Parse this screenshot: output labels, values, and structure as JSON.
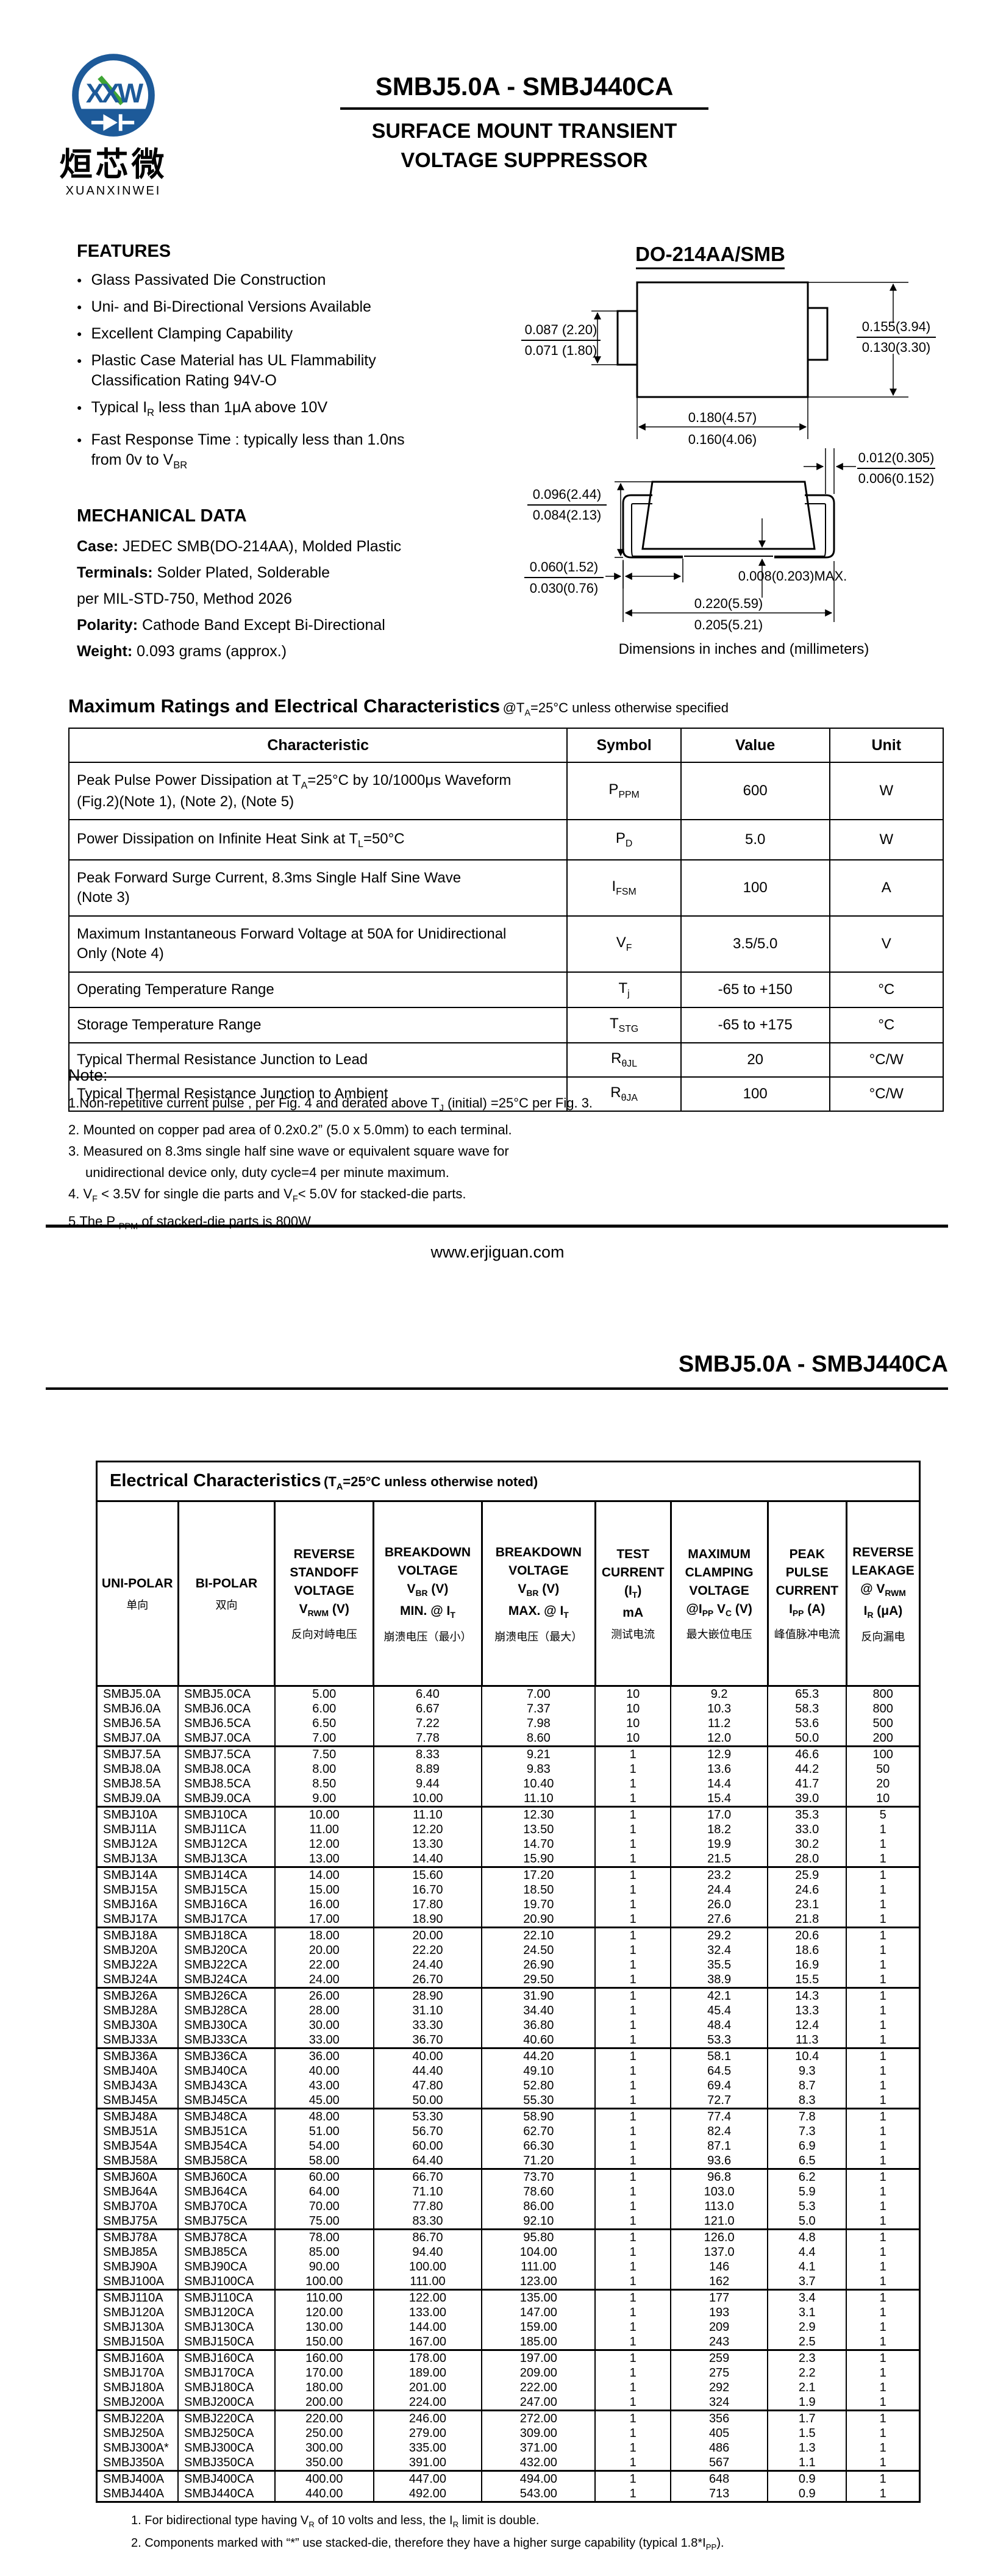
{
  "colors": {
    "logo_blue": "#1d5a99",
    "logo_green": "#3fa535"
  },
  "page1": {
    "logo": {
      "logo_text": "XXW",
      "brand_cn": "烜芯微",
      "brand_en": "XUANXINWEI"
    },
    "title": "SMBJ5.0A - SMBJ440CA",
    "subtitle": [
      "SURFACE MOUNT TRANSIENT",
      "VOLTAGE SUPPRESSOR"
    ],
    "features": {
      "heading": "FEATURES",
      "items": [
        [
          "Glass Passivated Die Construction"
        ],
        [
          "Uni- and Bi-Directional Versions Available"
        ],
        [
          "Excellent Clamping Capability"
        ],
        [
          "Plastic Case Material has UL Flammability",
          "Classification Rating 94V-O"
        ],
        [
          "Typical I_{R} less than 1μA above 10V"
        ],
        [
          "Fast Response Time : typically less than 1.0ns",
          "from 0v to V_{BR}"
        ]
      ]
    },
    "mechanical": {
      "heading": "MECHANICAL DATA",
      "lines": [
        {
          "label": "Case:",
          "text": " JEDEC SMB(DO-214AA), Molded Plastic"
        },
        {
          "label": "Terminals:",
          "text": " Solder Plated, Solderable"
        },
        {
          "label": "",
          "text": "per MIL-STD-750, Method 2026"
        },
        {
          "label": "Polarity:",
          "text": " Cathode Band Except Bi-Directional"
        },
        {
          "label": "Weight:",
          "text": " 0.093 grams (approx.)"
        }
      ]
    },
    "package": {
      "heading": "DO-214AA/SMB",
      "dims": {
        "tab_height": [
          "0.087 (2.20)",
          "0.071 (1.80)"
        ],
        "body_height": [
          "0.155(3.94)",
          "0.130(3.30)"
        ],
        "body_width": [
          "0.180(4.57)",
          "0.160(4.06)"
        ],
        "lead_thickness": [
          "0.012(0.305)",
          "0.006(0.152)"
        ],
        "profile_height": [
          "0.096(2.44)",
          "0.084(2.13)"
        ],
        "lead_length": [
          "0.060(1.52)",
          "0.030(0.76)"
        ],
        "standoff_max": "0.008(0.203)MAX.",
        "overall_width": [
          "0.220(5.59)",
          "0.205(5.21)"
        ]
      },
      "caption": "Dimensions in inches and (millimeters)"
    },
    "ratings": {
      "heading": "Maximum Ratings and Electrical Characteristics",
      "heading_note": "@T_{A}=25°C unless otherwise specified",
      "columns": [
        "Characteristic",
        "Symbol",
        "Value",
        "Unit"
      ],
      "rows": [
        {
          "characteristic": [
            "Peak Pulse Power Dissipation at T_{A}=25°C by 10/1000μs Waveform",
            "(Fig.2)(Note 1), (Note 2), (Note 5)"
          ],
          "symbol": "P_{PPM}",
          "value": "600",
          "unit": "W"
        },
        {
          "characteristic": [
            "Power Dissipation on Infinite Heat Sink at T_{L}=50°C"
          ],
          "symbol": "P_{D}",
          "value": "5.0",
          "unit": "W"
        },
        {
          "characteristic": [
            "Peak Forward Surge Current, 8.3ms Single Half Sine Wave",
            "(Note 3)"
          ],
          "symbol": "I_{FSM}",
          "value": "100",
          "unit": "A"
        },
        {
          "characteristic": [
            "Maximum Instantaneous Forward Voltage at 50A for Unidirectional",
            "Only (Note 4)"
          ],
          "symbol": "V_{F}",
          "value": "3.5/5.0",
          "unit": "V"
        },
        {
          "characteristic": [
            "Operating Temperature Range"
          ],
          "symbol": "T_{j}",
          "value": "-65 to +150",
          "unit": "°C"
        },
        {
          "characteristic": [
            "Storage Temperature Range"
          ],
          "symbol": "T_{STG}",
          "value": "-65 to +175",
          "unit": "°C"
        },
        {
          "characteristic": [
            "Typical Thermal Resistance Junction to Lead"
          ],
          "symbol": "R_{θJL}",
          "value": "20",
          "unit": "°C/W"
        },
        {
          "characteristic": [
            "Typical Thermal Resistance Junction to Ambient"
          ],
          "symbol": "R_{θJA}",
          "value": "100",
          "unit": "°C/W"
        }
      ]
    },
    "notes": {
      "heading": "Note:",
      "items": [
        [
          "1.Non-repetitive current pulse , per Fig. 4 and derated above T_{J} (initial) =25°C per Fig. 3."
        ],
        [
          "2. Mounted on copper pad area of 0.2x0.2” (5.0 x 5.0mm) to each terminal."
        ],
        [
          "3. Measured on 8.3ms single half sine wave or equivalent square wave for",
          "unidirectional device only, duty cycle=4 per minute maximum."
        ],
        [
          "4. V_{F} < 3.5V for single die parts and V_{F}< 5.0V for stacked-die parts."
        ],
        [
          "5.The P _{PPM} of stacked-die parts is 800W"
        ]
      ]
    },
    "footer_url": "www.erjiguan.com"
  },
  "page2": {
    "header_title": "SMBJ5.0A - SMBJ440CA",
    "table": {
      "title": "Electrical Characteristics",
      "title_note": "(T_{A}=25°C unless otherwise noted)",
      "columns": [
        {
          "en": [
            "UNI-POLAR"
          ],
          "cn": "单向"
        },
        {
          "en": [
            "BI-POLAR"
          ],
          "cn": "双向"
        },
        {
          "en": [
            "REVERSE",
            "STANDOFF",
            "VOLTAGE",
            "V_{RWM} (V)"
          ],
          "cn": "反向对峙电压"
        },
        {
          "en": [
            "BREAKDOWN",
            "VOLTAGE",
            "V_{BR} (V)",
            "MIN. @ I_{T}"
          ],
          "cn": "崩溃电压（最小）"
        },
        {
          "en": [
            "BREAKDOWN",
            "VOLTAGE",
            "V_{BR} (V)",
            "MAX. @ I_{T}"
          ],
          "cn": "崩溃电压（最大）"
        },
        {
          "en": [
            "TEST",
            "CURRENT",
            "(I_{T})",
            "mA"
          ],
          "cn": "测试电流"
        },
        {
          "en": [
            "MAXIMUM",
            "CLAMPING",
            "VOLTAGE",
            "@I_{PP} V_{C} (V)"
          ],
          "cn": "最大嵌位电压"
        },
        {
          "en": [
            "PEAK",
            "PULSE",
            "CURRENT",
            "I_{PP} (A)"
          ],
          "cn": "峰值脉冲电流"
        },
        {
          "en": [
            "REVERSE",
            "LEAKAGE",
            "@ V_{RWM}",
            "I_{R} (μA)"
          ],
          "cn": "反向漏电"
        }
      ],
      "rows": [
        [
          "SMBJ5.0A",
          "SMBJ5.0CA",
          "5.00",
          "6.40",
          "7.00",
          "10",
          "9.2",
          "65.3",
          "800"
        ],
        [
          "SMBJ6.0A",
          "SMBJ6.0CA",
          "6.00",
          "6.67",
          "7.37",
          "10",
          "10.3",
          "58.3",
          "800"
        ],
        [
          "SMBJ6.5A",
          "SMBJ6.5CA",
          "6.50",
          "7.22",
          "7.98",
          "10",
          "11.2",
          "53.6",
          "500"
        ],
        [
          "SMBJ7.0A",
          "SMBJ7.0CA",
          "7.00",
          "7.78",
          "8.60",
          "10",
          "12.0",
          "50.0",
          "200"
        ],
        [
          "SMBJ7.5A",
          "SMBJ7.5CA",
          "7.50",
          "8.33",
          "9.21",
          "1",
          "12.9",
          "46.6",
          "100"
        ],
        [
          "SMBJ8.0A",
          "SMBJ8.0CA",
          "8.00",
          "8.89",
          "9.83",
          "1",
          "13.6",
          "44.2",
          "50"
        ],
        [
          "SMBJ8.5A",
          "SMBJ8.5CA",
          "8.50",
          "9.44",
          "10.40",
          "1",
          "14.4",
          "41.7",
          "20"
        ],
        [
          "SMBJ9.0A",
          "SMBJ9.0CA",
          "9.00",
          "10.00",
          "11.10",
          "1",
          "15.4",
          "39.0",
          "10"
        ],
        [
          "SMBJ10A",
          "SMBJ10CA",
          "10.00",
          "11.10",
          "12.30",
          "1",
          "17.0",
          "35.3",
          "5"
        ],
        [
          "SMBJ11A",
          "SMBJ11CA",
          "11.00",
          "12.20",
          "13.50",
          "1",
          "18.2",
          "33.0",
          "1"
        ],
        [
          "SMBJ12A",
          "SMBJ12CA",
          "12.00",
          "13.30",
          "14.70",
          "1",
          "19.9",
          "30.2",
          "1"
        ],
        [
          "SMBJ13A",
          "SMBJ13CA",
          "13.00",
          "14.40",
          "15.90",
          "1",
          "21.5",
          "28.0",
          "1"
        ],
        [
          "SMBJ14A",
          "SMBJ14CA",
          "14.00",
          "15.60",
          "17.20",
          "1",
          "23.2",
          "25.9",
          "1"
        ],
        [
          "SMBJ15A",
          "SMBJ15CA",
          "15.00",
          "16.70",
          "18.50",
          "1",
          "24.4",
          "24.6",
          "1"
        ],
        [
          "SMBJ16A",
          "SMBJ16CA",
          "16.00",
          "17.80",
          "19.70",
          "1",
          "26.0",
          "23.1",
          "1"
        ],
        [
          "SMBJ17A",
          "SMBJ17CA",
          "17.00",
          "18.90",
          "20.90",
          "1",
          "27.6",
          "21.8",
          "1"
        ],
        [
          "SMBJ18A",
          "SMBJ18CA",
          "18.00",
          "20.00",
          "22.10",
          "1",
          "29.2",
          "20.6",
          "1"
        ],
        [
          "SMBJ20A",
          "SMBJ20CA",
          "20.00",
          "22.20",
          "24.50",
          "1",
          "32.4",
          "18.6",
          "1"
        ],
        [
          "SMBJ22A",
          "SMBJ22CA",
          "22.00",
          "24.40",
          "26.90",
          "1",
          "35.5",
          "16.9",
          "1"
        ],
        [
          "SMBJ24A",
          "SMBJ24CA",
          "24.00",
          "26.70",
          "29.50",
          "1",
          "38.9",
          "15.5",
          "1"
        ],
        [
          "SMBJ26A",
          "SMBJ26CA",
          "26.00",
          "28.90",
          "31.90",
          "1",
          "42.1",
          "14.3",
          "1"
        ],
        [
          "SMBJ28A",
          "SMBJ28CA",
          "28.00",
          "31.10",
          "34.40",
          "1",
          "45.4",
          "13.3",
          "1"
        ],
        [
          "SMBJ30A",
          "SMBJ30CA",
          "30.00",
          "33.30",
          "36.80",
          "1",
          "48.4",
          "12.4",
          "1"
        ],
        [
          "SMBJ33A",
          "SMBJ33CA",
          "33.00",
          "36.70",
          "40.60",
          "1",
          "53.3",
          "11.3",
          "1"
        ],
        [
          "SMBJ36A",
          "SMBJ36CA",
          "36.00",
          "40.00",
          "44.20",
          "1",
          "58.1",
          "10.4",
          "1"
        ],
        [
          "SMBJ40A",
          "SMBJ40CA",
          "40.00",
          "44.40",
          "49.10",
          "1",
          "64.5",
          "9.3",
          "1"
        ],
        [
          "SMBJ43A",
          "SMBJ43CA",
          "43.00",
          "47.80",
          "52.80",
          "1",
          "69.4",
          "8.7",
          "1"
        ],
        [
          "SMBJ45A",
          "SMBJ45CA",
          "45.00",
          "50.00",
          "55.30",
          "1",
          "72.7",
          "8.3",
          "1"
        ],
        [
          "SMBJ48A",
          "SMBJ48CA",
          "48.00",
          "53.30",
          "58.90",
          "1",
          "77.4",
          "7.8",
          "1"
        ],
        [
          "SMBJ51A",
          "SMBJ51CA",
          "51.00",
          "56.70",
          "62.70",
          "1",
          "82.4",
          "7.3",
          "1"
        ],
        [
          "SMBJ54A",
          "SMBJ54CA",
          "54.00",
          "60.00",
          "66.30",
          "1",
          "87.1",
          "6.9",
          "1"
        ],
        [
          "SMBJ58A",
          "SMBJ58CA",
          "58.00",
          "64.40",
          "71.20",
          "1",
          "93.6",
          "6.5",
          "1"
        ],
        [
          "SMBJ60A",
          "SMBJ60CA",
          "60.00",
          "66.70",
          "73.70",
          "1",
          "96.8",
          "6.2",
          "1"
        ],
        [
          "SMBJ64A",
          "SMBJ64CA",
          "64.00",
          "71.10",
          "78.60",
          "1",
          "103.0",
          "5.9",
          "1"
        ],
        [
          "SMBJ70A",
          "SMBJ70CA",
          "70.00",
          "77.80",
          "86.00",
          "1",
          "113.0",
          "5.3",
          "1"
        ],
        [
          "SMBJ75A",
          "SMBJ75CA",
          "75.00",
          "83.30",
          "92.10",
          "1",
          "121.0",
          "5.0",
          "1"
        ],
        [
          "SMBJ78A",
          "SMBJ78CA",
          "78.00",
          "86.70",
          "95.80",
          "1",
          "126.0",
          "4.8",
          "1"
        ],
        [
          "SMBJ85A",
          "SMBJ85CA",
          "85.00",
          "94.40",
          "104.00",
          "1",
          "137.0",
          "4.4",
          "1"
        ],
        [
          "SMBJ90A",
          "SMBJ90CA",
          "90.00",
          "100.00",
          "111.00",
          "1",
          "146",
          "4.1",
          "1"
        ],
        [
          "SMBJ100A",
          "SMBJ100CA",
          "100.00",
          "111.00",
          "123.00",
          "1",
          "162",
          "3.7",
          "1"
        ],
        [
          "SMBJ110A",
          "SMBJ110CA",
          "110.00",
          "122.00",
          "135.00",
          "1",
          "177",
          "3.4",
          "1"
        ],
        [
          "SMBJ120A",
          "SMBJ120CA",
          "120.00",
          "133.00",
          "147.00",
          "1",
          "193",
          "3.1",
          "1"
        ],
        [
          "SMBJ130A",
          "SMBJ130CA",
          "130.00",
          "144.00",
          "159.00",
          "1",
          "209",
          "2.9",
          "1"
        ],
        [
          "SMBJ150A",
          "SMBJ150CA",
          "150.00",
          "167.00",
          "185.00",
          "1",
          "243",
          "2.5",
          "1"
        ],
        [
          "SMBJ160A",
          "SMBJ160CA",
          "160.00",
          "178.00",
          "197.00",
          "1",
          "259",
          "2.3",
          "1"
        ],
        [
          "SMBJ170A",
          "SMBJ170CA",
          "170.00",
          "189.00",
          "209.00",
          "1",
          "275",
          "2.2",
          "1"
        ],
        [
          "SMBJ180A",
          "SMBJ180CA",
          "180.00",
          "201.00",
          "222.00",
          "1",
          "292",
          "2.1",
          "1"
        ],
        [
          "SMBJ200A",
          "SMBJ200CA",
          "200.00",
          "224.00",
          "247.00",
          "1",
          "324",
          "1.9",
          "1"
        ],
        [
          "SMBJ220A",
          "SMBJ220CA",
          "220.00",
          "246.00",
          "272.00",
          "1",
          "356",
          "1.7",
          "1"
        ],
        [
          "SMBJ250A",
          "SMBJ250CA",
          "250.00",
          "279.00",
          "309.00",
          "1",
          "405",
          "1.5",
          "1"
        ],
        [
          "SMBJ300A*",
          "SMBJ300CA",
          "300.00",
          "335.00",
          "371.00",
          "1",
          "486",
          "1.3",
          "1"
        ],
        [
          "SMBJ350A",
          "SMBJ350CA",
          "350.00",
          "391.00",
          "432.00",
          "1",
          "567",
          "1.1",
          "1"
        ],
        [
          "SMBJ400A",
          "SMBJ400CA",
          "400.00",
          "447.00",
          "494.00",
          "1",
          "648",
          "0.9",
          "1"
        ],
        [
          "SMBJ440A",
          "SMBJ440CA",
          "440.00",
          "492.00",
          "543.00",
          "1",
          "713",
          "0.9",
          "1"
        ]
      ]
    },
    "footnotes": [
      "1. For bidirectional type having V_{R} of 10 volts and less, the I_{R} limit is double.",
      "2. Components marked with “*” use stacked-die, therefore they have a higher surge capability (typical 1.8*I_{PP})."
    ]
  }
}
